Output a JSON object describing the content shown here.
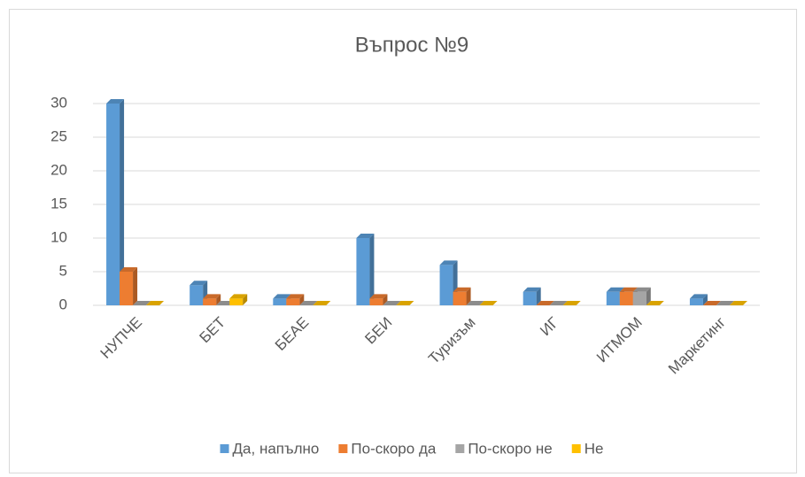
{
  "chart_data": {
    "type": "bar",
    "title": "Въпрос №9",
    "categories": [
      "НУПЧЕ",
      "БЕТ",
      "БЕАЕ",
      "БЕИ",
      "Туризъм",
      "ИГ",
      "ИТМОМ",
      "Маркетинг"
    ],
    "series": [
      {
        "name": "Да, напълно",
        "color": "#5b9bd5",
        "values": [
          30,
          3,
          1,
          10,
          6,
          2,
          2,
          1
        ]
      },
      {
        "name": "По-скоро да",
        "color": "#ed7d31",
        "values": [
          5,
          1,
          1,
          1,
          2,
          0,
          2,
          0
        ]
      },
      {
        "name": "По-скоро не",
        "color": "#a5a5a5",
        "values": [
          0,
          0,
          0,
          0,
          0,
          0,
          2,
          0
        ]
      },
      {
        "name": "Не",
        "color": "#ffc000",
        "values": [
          0,
          1,
          0,
          0,
          0,
          0,
          0,
          0
        ]
      }
    ],
    "ylim": [
      0,
      30
    ],
    "yticks": [
      0,
      5,
      10,
      15,
      20,
      25,
      30
    ],
    "grid": true,
    "legend": "bottom"
  }
}
